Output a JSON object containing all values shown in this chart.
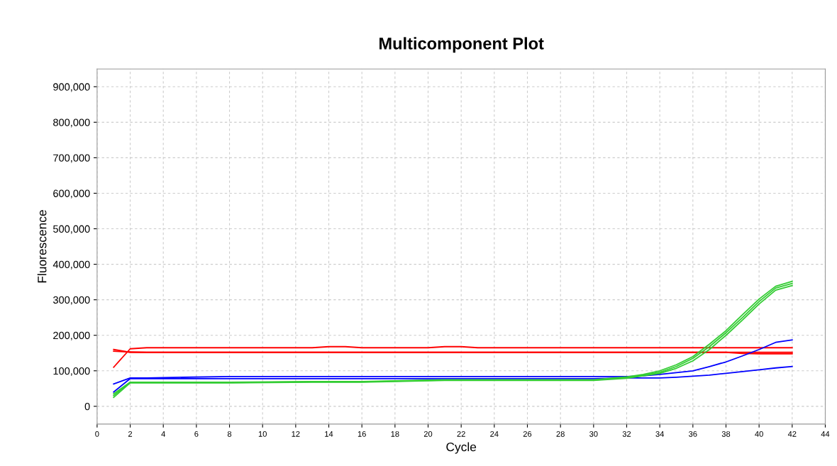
{
  "chart_data": {
    "type": "line",
    "title": "Multicomponent Plot",
    "xlabel": "Cycle",
    "ylabel": "Fluorescence",
    "xlim": [
      0,
      44
    ],
    "xticks": [
      0,
      2,
      4,
      6,
      8,
      10,
      12,
      14,
      16,
      18,
      20,
      22,
      24,
      26,
      28,
      30,
      32,
      34,
      36,
      38,
      40,
      42,
      44
    ],
    "ylim": [
      -50000,
      950000
    ],
    "yticks": [
      0,
      {
        "value": 100000,
        "label": "100,000"
      },
      {
        "value": 200000,
        "label": "200,000"
      },
      {
        "value": 300000,
        "label": "300,000"
      },
      {
        "value": 400000,
        "label": "400,000"
      },
      {
        "value": 500000,
        "label": "500,000"
      },
      {
        "value": 600000,
        "label": "600,000"
      },
      {
        "value": 700000,
        "label": "700,000"
      },
      {
        "value": 800000,
        "label": "800,000"
      },
      {
        "value": 900000,
        "label": "900,000"
      }
    ],
    "grid": true,
    "marker": "none",
    "line_style": "solid",
    "x": [
      1,
      2,
      3,
      8,
      13,
      14,
      15,
      16,
      20,
      21,
      22,
      23,
      30,
      32,
      33,
      34,
      35,
      36,
      37,
      38,
      39,
      40,
      41,
      42
    ],
    "series": [
      {
        "color": "#ff0000",
        "values": [
          110000,
          162000,
          165000,
          165000,
          165000,
          168000,
          168000,
          165000,
          165000,
          168000,
          168000,
          165000,
          165000,
          165000,
          165000,
          165000,
          165000,
          165000,
          165000,
          165000,
          165000,
          165000,
          165000,
          165000
        ]
      },
      {
        "color": "#ff0000",
        "values": [
          160000,
          152000,
          152000,
          152000,
          152000,
          152000,
          152000,
          152000,
          152000,
          152000,
          152000,
          152000,
          152000,
          152000,
          152000,
          152000,
          152000,
          152000,
          152000,
          152000,
          152000,
          152000,
          152000,
          152000
        ]
      },
      {
        "color": "#ff0000",
        "values": [
          155000,
          153000,
          152000,
          152000,
          152000,
          152000,
          152000,
          152000,
          152000,
          152000,
          152000,
          152000,
          152000,
          152000,
          152000,
          152000,
          152000,
          152000,
          152000,
          152000,
          149000,
          148000,
          148000,
          148000
        ]
      },
      {
        "color": "#0000ff",
        "values": [
          63000,
          80000,
          80000,
          84000,
          84000,
          84000,
          84000,
          84000,
          84000,
          84000,
          84000,
          84000,
          84000,
          84000,
          86000,
          90000,
          95000,
          100000,
          112000,
          125000,
          142000,
          160000,
          180000,
          187000
        ]
      },
      {
        "color": "#0000ff",
        "values": [
          40000,
          78000,
          78000,
          78000,
          78000,
          78000,
          78000,
          78000,
          78000,
          78000,
          78000,
          78000,
          78000,
          80000,
          80000,
          80000,
          82000,
          85000,
          88000,
          93000,
          98000,
          103000,
          108000,
          112000
        ]
      },
      {
        "color": "#33cc33",
        "values": [
          35000,
          68000,
          68000,
          68000,
          70000,
          70000,
          70000,
          70000,
          74000,
          75000,
          75000,
          75000,
          75000,
          83000,
          90000,
          100000,
          117000,
          140000,
          175000,
          213000,
          258000,
          302000,
          338000,
          352000
        ]
      },
      {
        "color": "#33cc33",
        "values": [
          30000,
          67000,
          67000,
          67000,
          69000,
          69000,
          69000,
          69000,
          73000,
          74000,
          74000,
          74000,
          74000,
          81000,
          88000,
          96000,
          112000,
          135000,
          168000,
          207000,
          250000,
          295000,
          333000,
          346000
        ]
      },
      {
        "color": "#33cc33",
        "values": [
          25000,
          66000,
          66000,
          66000,
          68000,
          68000,
          68000,
          68000,
          72000,
          73000,
          73000,
          73000,
          73000,
          79000,
          86000,
          93000,
          107000,
          128000,
          160000,
          200000,
          243000,
          288000,
          327000,
          340000
        ]
      }
    ]
  }
}
